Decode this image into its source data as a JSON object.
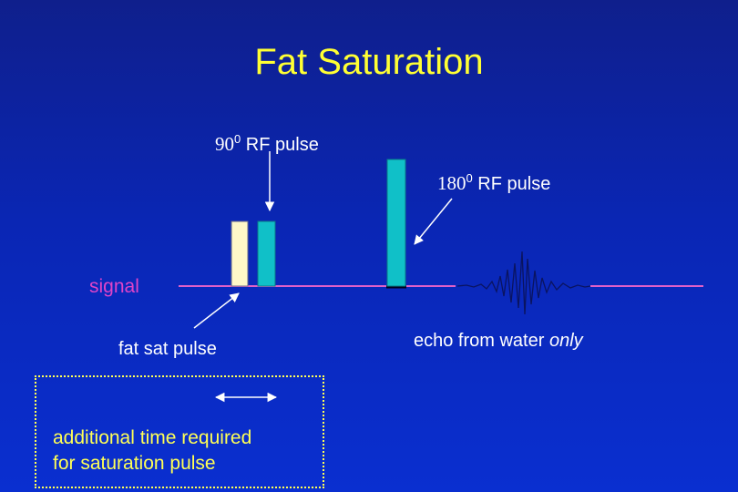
{
  "title": "Fat Saturation",
  "labels": {
    "rf90_number": "90",
    "rf90_sup": "0",
    "rf90_text": " RF pulse",
    "rf180_number": "180",
    "rf180_sup": "0",
    "rf180_text": " RF pulse",
    "signal": "signal",
    "fat_sat": "fat sat pulse",
    "echo_prefix": "echo from water ",
    "echo_emphasis": "only",
    "note_line1": "additional time required",
    "note_line2": "for saturation pulse"
  },
  "colors": {
    "title": "#ffff33",
    "signal": "#e044c8",
    "fat_sat_pulse": "#fff8c8",
    "rf_pulse": "#10c0c8",
    "note": "#ffff55"
  }
}
